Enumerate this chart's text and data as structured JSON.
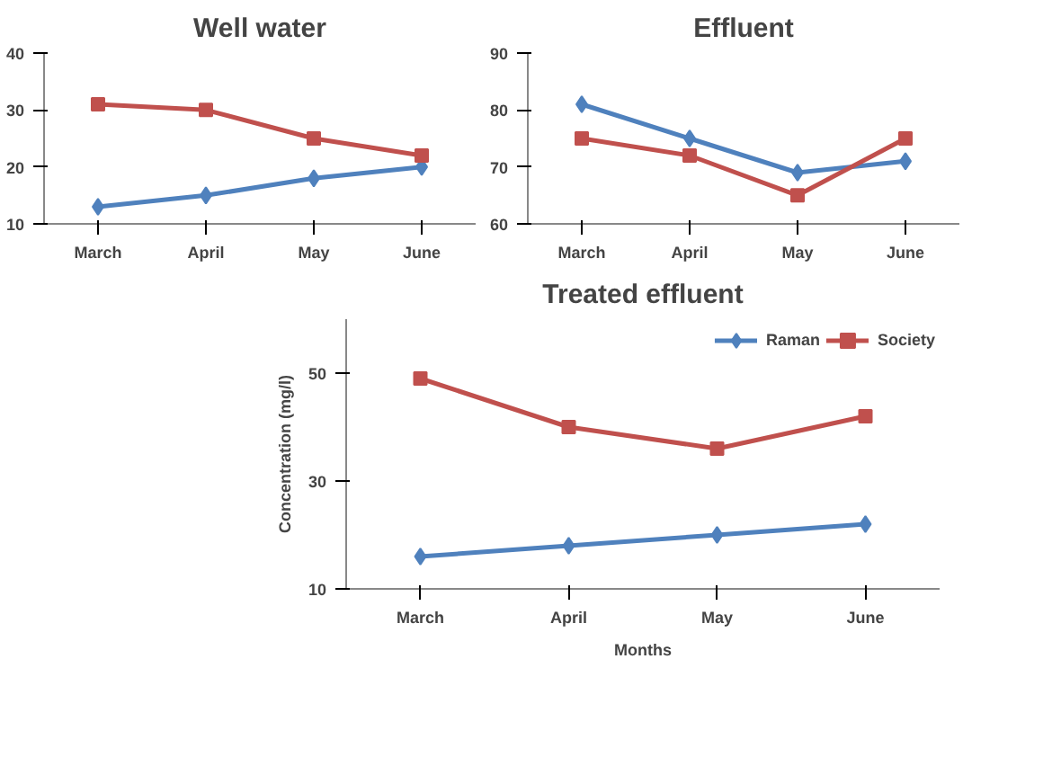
{
  "chart_data": [
    {
      "type": "line",
      "title": "Well water",
      "categories": [
        "March",
        "April",
        "May",
        "June"
      ],
      "ylim": [
        10,
        40
      ],
      "yticks": [
        10,
        20,
        30,
        40
      ],
      "grid": false,
      "series": [
        {
          "color": "#4f81bd",
          "marker": "diamond",
          "values": [
            13,
            15,
            18,
            20
          ]
        },
        {
          "color": "#c0504d",
          "marker": "square",
          "values": [
            31,
            30,
            25,
            22
          ]
        }
      ]
    },
    {
      "type": "line",
      "title": "Effluent",
      "categories": [
        "March",
        "April",
        "May",
        "June"
      ],
      "ylim": [
        60,
        90
      ],
      "yticks": [
        60,
        70,
        80,
        90
      ],
      "grid": false,
      "series": [
        {
          "color": "#4f81bd",
          "marker": "diamond",
          "values": [
            81,
            75,
            69,
            71
          ]
        },
        {
          "color": "#c0504d",
          "marker": "square",
          "values": [
            75,
            72,
            65,
            75
          ]
        }
      ]
    },
    {
      "type": "line",
      "title": "Treated effluent",
      "xlabel": "Months",
      "ylabel": "Concentration (mg/l)",
      "categories": [
        "March",
        "April",
        "May",
        "June"
      ],
      "ylim": [
        10,
        60
      ],
      "yticks": [
        10,
        30,
        50
      ],
      "grid": false,
      "legend": "top right",
      "series": [
        {
          "name": "Raman",
          "color": "#4f81bd",
          "marker": "diamond",
          "values": [
            16,
            18,
            20,
            22
          ]
        },
        {
          "name": "Society",
          "color": "#c0504d",
          "marker": "square",
          "values": [
            49,
            40,
            36,
            42
          ]
        }
      ]
    }
  ]
}
